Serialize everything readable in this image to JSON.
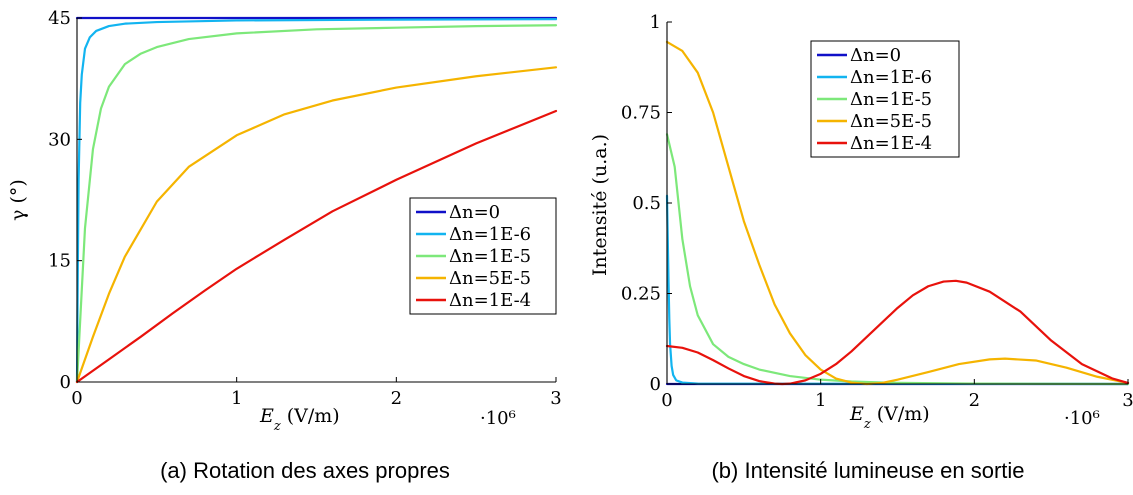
{
  "chart_data": [
    {
      "type": "line",
      "caption": "(a) Rotation des axes propres",
      "xlabel": "E_z (V/m)",
      "xlabel_var": "E",
      "xlabel_sub": "z",
      "xlabel_unit": "(V/m)",
      "x_multiplier": "·10⁶",
      "ylabel": "γ (°)",
      "xlim": [
        0,
        3
      ],
      "ylim": [
        0,
        45
      ],
      "xticks": [
        0,
        1,
        2,
        3
      ],
      "yticks": [
        0,
        15,
        30,
        45
      ],
      "legend_position": "center-right",
      "series": [
        {
          "name": "Δn=0",
          "color": "#1010c8",
          "x": [
            0,
            0.005,
            0.1,
            0.5,
            1,
            2,
            3
          ],
          "y": [
            45,
            45,
            45,
            45,
            45,
            45,
            45
          ]
        },
        {
          "name": "Δn=1E-6",
          "color": "#12b4f0",
          "x": [
            0,
            0.005,
            0.01,
            0.02,
            0.03,
            0.05,
            0.08,
            0.12,
            0.2,
            0.3,
            0.5,
            1,
            2,
            3
          ],
          "y": [
            0,
            14,
            25,
            34.5,
            38,
            41.2,
            42.6,
            43.4,
            44,
            44.3,
            44.5,
            44.7,
            44.8,
            44.85
          ]
        },
        {
          "name": "Δn=1E-5",
          "color": "#7de87a",
          "x": [
            0,
            0.05,
            0.1,
            0.15,
            0.2,
            0.3,
            0.4,
            0.5,
            0.7,
            1,
            1.5,
            2,
            2.5,
            3
          ],
          "y": [
            0,
            19,
            28.8,
            33.8,
            36.5,
            39.3,
            40.6,
            41.4,
            42.4,
            43.1,
            43.6,
            43.8,
            44,
            44.1
          ]
        },
        {
          "name": "Δn=5E-5",
          "color": "#f5b400",
          "x": [
            0,
            0.1,
            0.2,
            0.3,
            0.5,
            0.7,
            1,
            1.3,
            1.6,
            2,
            2.5,
            3
          ],
          "y": [
            0,
            5.6,
            10.9,
            15.5,
            22.3,
            26.6,
            30.5,
            33.1,
            34.8,
            36.4,
            37.8,
            38.9
          ]
        },
        {
          "name": "Δn=1E-4",
          "color": "#e8120c",
          "x": [
            0,
            0.2,
            0.4,
            0.6,
            0.8,
            1,
            1.3,
            1.6,
            2,
            2.5,
            3
          ],
          "y": [
            0,
            2.8,
            5.6,
            8.5,
            11.3,
            14,
            17.6,
            21.1,
            25,
            29.5,
            33.5
          ]
        }
      ]
    },
    {
      "type": "line",
      "caption": "(b) Intensité lumineuse en sortie",
      "xlabel": "E_z (V/m)",
      "xlabel_var": "E",
      "xlabel_sub": "z",
      "xlabel_unit": "(V/m)",
      "x_multiplier": "·10⁶",
      "ylabel": "Intensité (u.a.)",
      "xlim": [
        0,
        3
      ],
      "ylim": [
        0,
        1
      ],
      "xticks": [
        0,
        1,
        2,
        3
      ],
      "yticks": [
        0,
        0.25,
        0.5,
        0.75,
        1
      ],
      "ytick_labels": [
        "0",
        "0.25",
        "0.5",
        "0.75",
        "1"
      ],
      "legend_position": "top-center",
      "series": [
        {
          "name": "Δn=0",
          "color": "#1010c8",
          "x": [
            0,
            3
          ],
          "y": [
            0,
            0
          ]
        },
        {
          "name": "Δn=1E-6",
          "color": "#12b4f0",
          "x": [
            0,
            0.005,
            0.01,
            0.015,
            0.02,
            0.03,
            0.04,
            0.06,
            0.1,
            0.2,
            3
          ],
          "y": [
            0.52,
            0.4,
            0.28,
            0.18,
            0.11,
            0.05,
            0.025,
            0.01,
            0.004,
            0.001,
            0
          ]
        },
        {
          "name": "Δn=1E-5",
          "color": "#7de87a",
          "x": [
            0,
            0.05,
            0.1,
            0.15,
            0.2,
            0.3,
            0.4,
            0.5,
            0.6,
            0.8,
            1,
            1.2,
            1.5,
            2,
            3
          ],
          "y": [
            0.69,
            0.6,
            0.4,
            0.27,
            0.19,
            0.11,
            0.075,
            0.055,
            0.04,
            0.022,
            0.012,
            0.007,
            0.003,
            0.001,
            0
          ]
        },
        {
          "name": "Δn=5E-5",
          "color": "#f5b400",
          "x": [
            0,
            0.1,
            0.2,
            0.3,
            0.4,
            0.5,
            0.6,
            0.7,
            0.8,
            0.9,
            1,
            1.1,
            1.2,
            1.3,
            1.4,
            1.5,
            1.7,
            1.9,
            2.1,
            2.2,
            2.4,
            2.6,
            2.8,
            3
          ],
          "y": [
            0.945,
            0.92,
            0.86,
            0.75,
            0.6,
            0.45,
            0.33,
            0.22,
            0.14,
            0.08,
            0.04,
            0.015,
            0.004,
            0,
            0.003,
            0.012,
            0.033,
            0.055,
            0.068,
            0.07,
            0.065,
            0.045,
            0.02,
            0.003
          ]
        },
        {
          "name": "Δn=1E-4",
          "color": "#e8120c",
          "x": [
            0,
            0.1,
            0.2,
            0.3,
            0.4,
            0.5,
            0.6,
            0.7,
            0.75,
            0.8,
            0.9,
            1,
            1.1,
            1.2,
            1.3,
            1.4,
            1.5,
            1.6,
            1.7,
            1.8,
            1.88,
            1.95,
            2.1,
            2.3,
            2.5,
            2.7,
            2.9,
            3
          ],
          "y": [
            0.105,
            0.1,
            0.087,
            0.066,
            0.043,
            0.022,
            0.008,
            0.001,
            0,
            0.001,
            0.01,
            0.028,
            0.055,
            0.09,
            0.13,
            0.17,
            0.21,
            0.245,
            0.27,
            0.283,
            0.285,
            0.28,
            0.255,
            0.2,
            0.12,
            0.055,
            0.015,
            0.003
          ]
        }
      ]
    }
  ]
}
